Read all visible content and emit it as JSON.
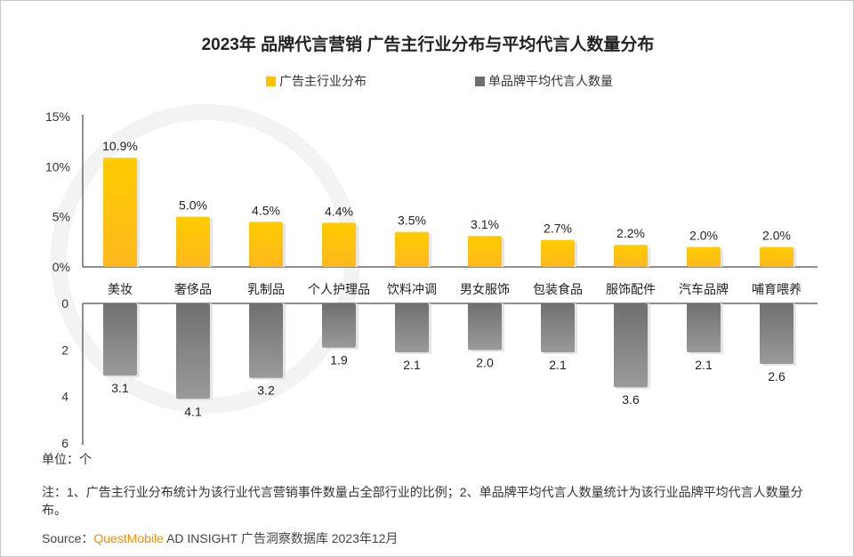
{
  "chart_data": {
    "type": "bar",
    "title": "2023年 品牌代言营销 广告主行业分布与平均代言人数量分布",
    "categories": [
      "美妆",
      "奢侈品",
      "乳制品",
      "个人护理品",
      "饮料冲调",
      "男女服饰",
      "包装食品",
      "服饰配件",
      "汽车品牌",
      "哺育喂养"
    ],
    "series": [
      {
        "name": "广告主行业分布",
        "values": [
          10.9,
          5.0,
          4.5,
          4.4,
          3.5,
          3.1,
          2.7,
          2.2,
          2.0,
          2.0
        ],
        "labels": [
          "10.9%",
          "5.0%",
          "4.5%",
          "4.4%",
          "3.5%",
          "3.1%",
          "2.7%",
          "2.2%",
          "2.0%",
          "2.0%"
        ],
        "color": "#ffc000",
        "ylim": [
          0,
          15
        ],
        "yticks": [
          "0%",
          "5%",
          "10%",
          "15%"
        ],
        "tick_values": [
          0,
          5,
          10,
          15
        ]
      },
      {
        "name": "单品牌平均代言人数量",
        "values": [
          3.1,
          4.1,
          3.2,
          1.9,
          2.1,
          2.0,
          2.1,
          3.6,
          2.1,
          2.6
        ],
        "labels": [
          "3.1",
          "4.1",
          "3.2",
          "1.9",
          "2.1",
          "2.0",
          "2.1",
          "3.6",
          "2.1",
          "2.6"
        ],
        "color": "#7a7a7a",
        "ylim": [
          0,
          6
        ],
        "yticks": [
          "0",
          "2",
          "4",
          "6"
        ],
        "tick_values": [
          0,
          2,
          4,
          6
        ],
        "inverted": true
      }
    ],
    "unit_label": "单位：个",
    "legend_position": "top-center",
    "grid": false
  },
  "note": "注：1、广告主行业分布统计为该行业代言营销事件数量占全部行业的比例；2、单品牌平均代言人数量统计为该行业品牌平均代言人数量分布。",
  "source": {
    "prefix": "Source：",
    "brand": "QuestMobile",
    "rest": " AD INSIGHT 广告洞察数据库 2023年12月"
  }
}
